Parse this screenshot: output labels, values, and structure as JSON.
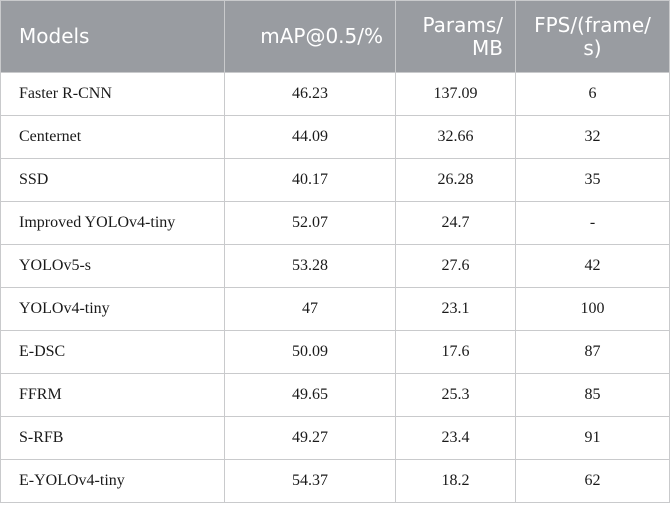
{
  "table": {
    "headers": [
      "Models",
      "mAP@0.5/%",
      "Params/ MB",
      "FPS/(frame/ s)"
    ],
    "rows": [
      [
        "Faster R-CNN",
        "46.23",
        "137.09",
        "6"
      ],
      [
        "Centernet",
        "44.09",
        "32.66",
        "32"
      ],
      [
        "SSD",
        "40.17",
        "26.28",
        "35"
      ],
      [
        "Improved YOLOv4-tiny",
        "52.07",
        "24.7",
        "-"
      ],
      [
        "YOLOv5-s",
        "53.28",
        "27.6",
        "42"
      ],
      [
        "YOLOv4-tiny",
        "47",
        "23.1",
        "100"
      ],
      [
        "E-DSC",
        "50.09",
        "17.6",
        "87"
      ],
      [
        "FFRM",
        "49.65",
        "25.3",
        "85"
      ],
      [
        "S-RFB",
        "49.27",
        "23.4",
        "91"
      ],
      [
        "E-YOLOv4-tiny",
        "54.37",
        "18.2",
        "62"
      ]
    ]
  },
  "colors": {
    "header_bg": "#999ca1",
    "header_text": "#ffffff",
    "grid": "#c9cacc"
  }
}
